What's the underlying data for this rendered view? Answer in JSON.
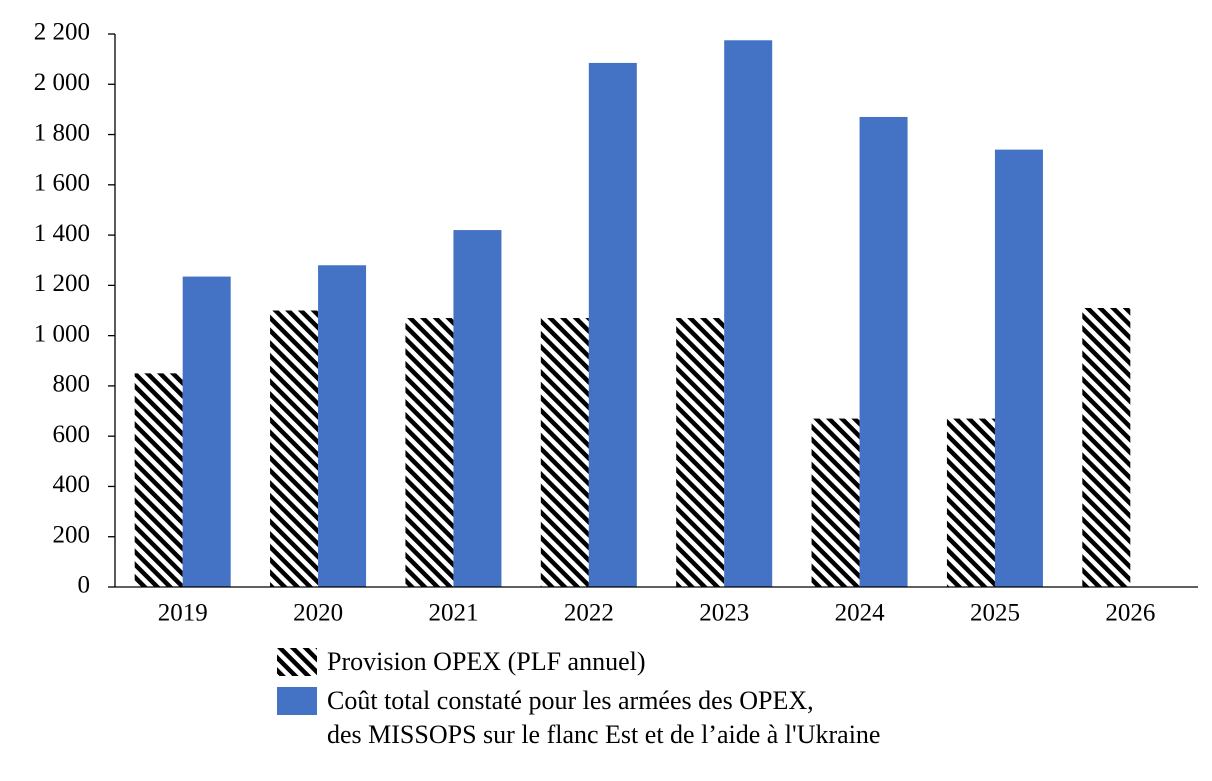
{
  "chart_data": {
    "type": "bar",
    "categories": [
      "2019",
      "2020",
      "2021",
      "2022",
      "2023",
      "2024",
      "2025",
      "2026"
    ],
    "series": [
      {
        "name": "Provision OPEX (PLF annuel)",
        "color": "#000000",
        "pattern": "hatch",
        "values": [
          850,
          1100,
          1070,
          1070,
          1070,
          670,
          670,
          1110
        ]
      },
      {
        "name": "Coût total constaté pour les armées des OPEX,\ndes MISSOPS sur le flanc Est et de l’aide à l'Ukraine",
        "color": "#4472c4",
        "values": [
          1235,
          1280,
          1420,
          2085,
          2175,
          1870,
          1740,
          null
        ]
      }
    ],
    "ylim": [
      0,
      2200
    ],
    "yticks": [
      0,
      200,
      400,
      600,
      800,
      {
        "value": 1000,
        "label": "1 000"
      },
      {
        "value": 1200,
        "label": "1 200"
      },
      {
        "value": 1400,
        "label": "1 400"
      },
      {
        "value": 1600,
        "label": "1 600"
      },
      {
        "value": 1800,
        "label": "1 800"
      },
      {
        "value": 2000,
        "label": "2 000"
      },
      {
        "value": 2200,
        "label": "2 200"
      }
    ],
    "grid": false
  }
}
